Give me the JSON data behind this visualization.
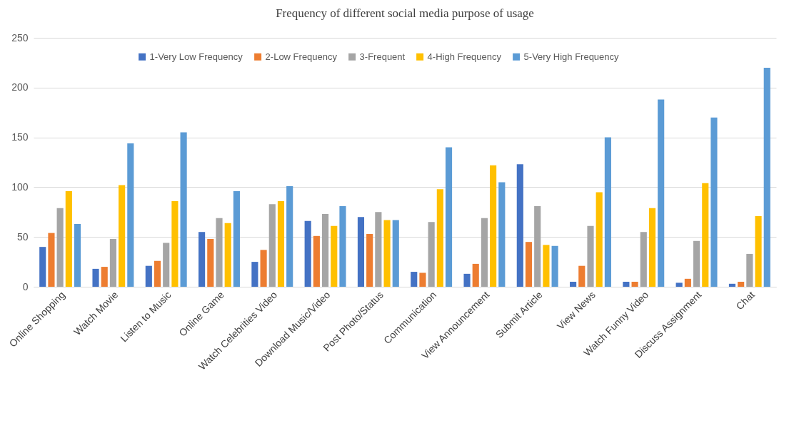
{
  "chart_data": {
    "type": "bar",
    "title": "Frequency of different social media purpose of usage",
    "categories": [
      "Online Shopping",
      "Watch Movie",
      "Listen to Music",
      "Online Game",
      "Watch Celebrities Video",
      "Download Music/Video",
      "Post Photo/Status",
      "Communication",
      "View Announcement",
      "Submit Article",
      "View News",
      "Watch Funny Video",
      "Discuss Assignment",
      "Chat"
    ],
    "series": [
      {
        "name": "1-Very Low Frequency",
        "color": "#4472c4",
        "values": [
          40,
          18,
          21,
          55,
          25,
          66,
          70,
          15,
          13,
          123,
          5,
          5,
          4,
          3
        ]
      },
      {
        "name": "2-Low Frequency",
        "color": "#ed7d31",
        "values": [
          54,
          20,
          26,
          48,
          37,
          51,
          53,
          14,
          23,
          45,
          21,
          5,
          8,
          5
        ]
      },
      {
        "name": "3-Frequent",
        "color": "#a5a5a5",
        "values": [
          79,
          48,
          44,
          69,
          83,
          73,
          75,
          65,
          69,
          81,
          61,
          55,
          46,
          33
        ]
      },
      {
        "name": "4-High Frequency",
        "color": "#ffc000",
        "values": [
          96,
          102,
          86,
          64,
          86,
          61,
          67,
          98,
          122,
          42,
          95,
          79,
          104,
          71
        ]
      },
      {
        "name": "5-Very High Frequency",
        "color": "#5b9bd5",
        "values": [
          63,
          144,
          155,
          96,
          101,
          81,
          67,
          140,
          105,
          41,
          150,
          188,
          170,
          220
        ]
      }
    ],
    "ylim": [
      0,
      250
    ],
    "yticks": [
      0,
      50,
      100,
      150,
      200,
      250
    ],
    "grid": "y",
    "legend": "top"
  }
}
